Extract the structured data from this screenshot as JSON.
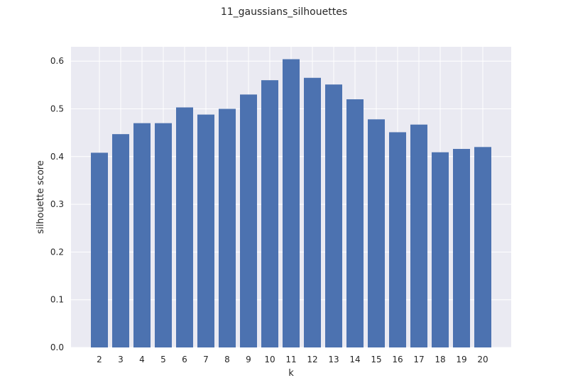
{
  "chart_data": {
    "type": "bar",
    "title": "11_gaussians_silhouettes",
    "xlabel": "k",
    "ylabel": "silhouette score",
    "categories": [
      "2",
      "3",
      "4",
      "5",
      "6",
      "7",
      "8",
      "9",
      "10",
      "11",
      "12",
      "13",
      "14",
      "15",
      "16",
      "17",
      "18",
      "19",
      "20"
    ],
    "values": [
      0.408,
      0.447,
      0.47,
      0.47,
      0.503,
      0.488,
      0.5,
      0.53,
      0.56,
      0.604,
      0.565,
      0.551,
      0.52,
      0.478,
      0.451,
      0.467,
      0.409,
      0.416,
      0.42
    ],
    "ylim": [
      0,
      0.63
    ],
    "yticks": [
      "0.0",
      "0.1",
      "0.2",
      "0.3",
      "0.4",
      "0.5",
      "0.6"
    ],
    "grid": true,
    "legend": "none",
    "colors": {
      "bar": "#4c72b0",
      "plot_background": "#eaeaf2",
      "grid": "#ffffff"
    }
  }
}
